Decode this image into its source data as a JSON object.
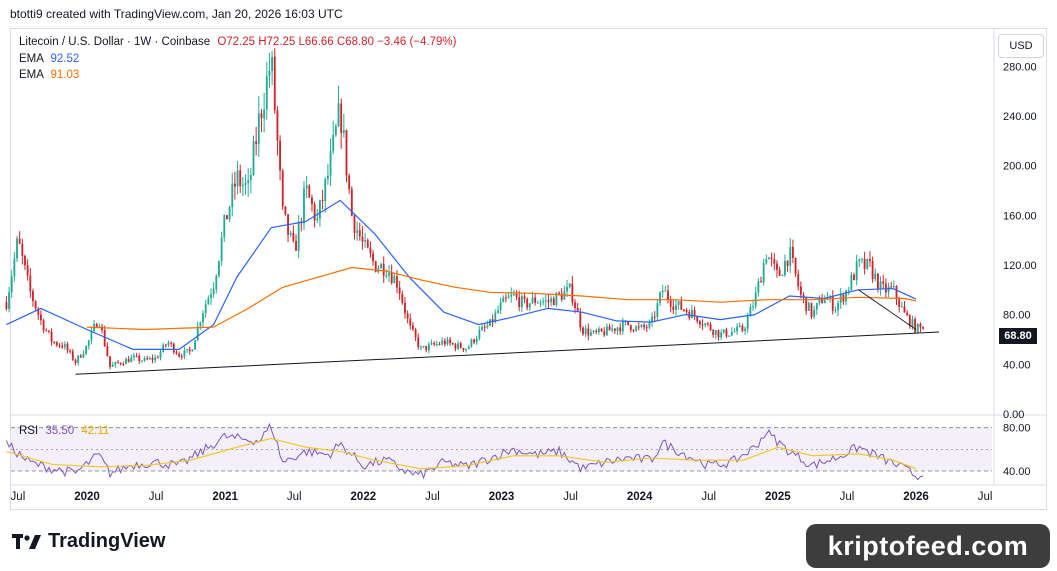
{
  "header": {
    "attribution": "btotti9 created with TradingView.com, Jan 20, 2026 16:03 UTC"
  },
  "legend": {
    "symbol": "Litecoin / U.S. Dollar · 1W · Coinbase",
    "ohlc": "O72.25 H72.25 L66.66 C68.80 −3.46 (−4.79%)",
    "ema1_label": "EMA",
    "ema1_value": "92.52",
    "ema2_label": "EMA",
    "ema2_value": "91.03",
    "rsi_label": "RSI",
    "rsi_value": "35.50",
    "rsi_ma_value": "42.11"
  },
  "currency": "USD",
  "last_price_tag": "68.80",
  "brand": "TradingView",
  "watermark": "kriptofeed.com",
  "colors": {
    "up": "#22ab94",
    "down": "#d0232a",
    "ema_fast": "#2962ff",
    "ema_slow": "#ff6d00",
    "rsi": "#7e57c2",
    "rsi_ma": "#f5c518",
    "trendline": "#131722"
  },
  "chart_data": {
    "type": "candlestick",
    "symbol": "LTCUSD",
    "interval": "1W",
    "price_axis_ticks": [
      "280.00",
      "240.00",
      "200.00",
      "160.00",
      "120.00",
      "80.00",
      "40.00",
      "0.00"
    ],
    "rsi_axis_ticks": [
      "80.00",
      "40.00"
    ],
    "x_tick_labels": [
      "Jul",
      "2020",
      "Jul",
      "2021",
      "Jul",
      "2022",
      "Jul",
      "2023",
      "Jul",
      "2024",
      "Jul",
      "2025",
      "Jul",
      "2026",
      "Jul"
    ],
    "ylim": [
      0,
      310
    ],
    "rsi_ylim": [
      28,
      88
    ],
    "price_path": [
      [
        "2019-06",
        90
      ],
      [
        "2019-07",
        140
      ],
      [
        "2019-08",
        100
      ],
      [
        "2019-09",
        75
      ],
      [
        "2019-10",
        58
      ],
      [
        "2019-11",
        55
      ],
      [
        "2019-12",
        42
      ],
      [
        "2020-01",
        55
      ],
      [
        "2020-02",
        78
      ],
      [
        "2020-03",
        38
      ],
      [
        "2020-04",
        42
      ],
      [
        "2020-05",
        45
      ],
      [
        "2020-06",
        43
      ],
      [
        "2020-07",
        45
      ],
      [
        "2020-08",
        58
      ],
      [
        "2020-09",
        48
      ],
      [
        "2020-10",
        50
      ],
      [
        "2020-11",
        82
      ],
      [
        "2020-12",
        105
      ],
      [
        "2021-01",
        155
      ],
      [
        "2021-02",
        190
      ],
      [
        "2021-03",
        180
      ],
      [
        "2021-04",
        240
      ],
      [
        "2021-05",
        285
      ],
      [
        "2021-06",
        160
      ],
      [
        "2021-07",
        130
      ],
      [
        "2021-08",
        180
      ],
      [
        "2021-09",
        155
      ],
      [
        "2021-10",
        195
      ],
      [
        "2021-11",
        245
      ],
      [
        "2021-12",
        160
      ],
      [
        "2022-01",
        135
      ],
      [
        "2022-02",
        120
      ],
      [
        "2022-03",
        118
      ],
      [
        "2022-04",
        105
      ],
      [
        "2022-05",
        70
      ],
      [
        "2022-06",
        52
      ],
      [
        "2022-07",
        55
      ],
      [
        "2022-08",
        58
      ],
      [
        "2022-09",
        55
      ],
      [
        "2022-10",
        53
      ],
      [
        "2022-11",
        65
      ],
      [
        "2022-12",
        72
      ],
      [
        "2023-01",
        88
      ],
      [
        "2023-02",
        95
      ],
      [
        "2023-03",
        88
      ],
      [
        "2023-04",
        92
      ],
      [
        "2023-05",
        90
      ],
      [
        "2023-06",
        95
      ],
      [
        "2023-07",
        100
      ],
      [
        "2023-08",
        68
      ],
      [
        "2023-09",
        64
      ],
      [
        "2023-10",
        66
      ],
      [
        "2023-11",
        70
      ],
      [
        "2023-12",
        72
      ],
      [
        "2024-01",
        68
      ],
      [
        "2024-02",
        72
      ],
      [
        "2024-03",
        100
      ],
      [
        "2024-04",
        88
      ],
      [
        "2024-05",
        84
      ],
      [
        "2024-06",
        78
      ],
      [
        "2024-07",
        70
      ],
      [
        "2024-08",
        64
      ],
      [
        "2024-09",
        66
      ],
      [
        "2024-10",
        68
      ],
      [
        "2024-11",
        92
      ],
      [
        "2024-12",
        130
      ],
      [
        "2025-01",
        110
      ],
      [
        "2025-02",
        130
      ],
      [
        "2025-03",
        95
      ],
      [
        "2025-04",
        80
      ],
      [
        "2025-05",
        95
      ],
      [
        "2025-06",
        86
      ],
      [
        "2025-07",
        100
      ],
      [
        "2025-08",
        120
      ],
      [
        "2025-09",
        118
      ],
      [
        "2025-10",
        100
      ],
      [
        "2025-11",
        100
      ],
      [
        "2025-12",
        80
      ],
      [
        "2026-01",
        68.8
      ]
    ],
    "ema_fast_path": [
      [
        "2019-06",
        72
      ],
      [
        "2019-09",
        85
      ],
      [
        "2020-01",
        68
      ],
      [
        "2020-05",
        52
      ],
      [
        "2020-09",
        52
      ],
      [
        "2020-12",
        72
      ],
      [
        "2021-02",
        110
      ],
      [
        "2021-05",
        150
      ],
      [
        "2021-08",
        155
      ],
      [
        "2021-11",
        172
      ],
      [
        "2022-02",
        145
      ],
      [
        "2022-05",
        110
      ],
      [
        "2022-08",
        82
      ],
      [
        "2022-11",
        72
      ],
      [
        "2023-02",
        78
      ],
      [
        "2023-05",
        85
      ],
      [
        "2023-08",
        82
      ],
      [
        "2023-11",
        75
      ],
      [
        "2024-02",
        74
      ],
      [
        "2024-05",
        80
      ],
      [
        "2024-08",
        76
      ],
      [
        "2024-11",
        80
      ],
      [
        "2025-02",
        95
      ],
      [
        "2025-05",
        93
      ],
      [
        "2025-08",
        100
      ],
      [
        "2025-11",
        101
      ],
      [
        "2026-01",
        92.52
      ]
    ],
    "ema_slow_path": [
      [
        "2020-01",
        70
      ],
      [
        "2020-06",
        68
      ],
      [
        "2020-12",
        70
      ],
      [
        "2021-03",
        85
      ],
      [
        "2021-06",
        102
      ],
      [
        "2021-09",
        110
      ],
      [
        "2021-12",
        118
      ],
      [
        "2022-03",
        115
      ],
      [
        "2022-06",
        108
      ],
      [
        "2022-09",
        102
      ],
      [
        "2022-12",
        98
      ],
      [
        "2023-04",
        97
      ],
      [
        "2023-08",
        95
      ],
      [
        "2023-12",
        92
      ],
      [
        "2024-04",
        92
      ],
      [
        "2024-08",
        90
      ],
      [
        "2024-12",
        92
      ],
      [
        "2025-04",
        92
      ],
      [
        "2025-08",
        94
      ],
      [
        "2025-12",
        93
      ],
      [
        "2026-01",
        91.03
      ]
    ],
    "trendline": [
      [
        "2019-12",
        32
      ],
      [
        "2026-03",
        66
      ]
    ],
    "short_trend": [
      [
        "2025-08",
        100
      ],
      [
        "2026-01",
        68
      ]
    ],
    "rsi_path": [
      [
        "2019-06",
        65
      ],
      [
        "2019-08",
        48
      ],
      [
        "2019-10",
        42
      ],
      [
        "2019-12",
        38
      ],
      [
        "2020-02",
        55
      ],
      [
        "2020-03",
        38
      ],
      [
        "2020-05",
        46
      ],
      [
        "2020-07",
        48
      ],
      [
        "2020-09",
        45
      ],
      [
        "2020-11",
        58
      ],
      [
        "2021-01",
        72
      ],
      [
        "2021-02",
        70
      ],
      [
        "2021-04",
        68
      ],
      [
        "2021-05",
        82
      ],
      [
        "2021-06",
        48
      ],
      [
        "2021-08",
        58
      ],
      [
        "2021-10",
        55
      ],
      [
        "2021-11",
        65
      ],
      [
        "2022-01",
        45
      ],
      [
        "2022-03",
        50
      ],
      [
        "2022-05",
        38
      ],
      [
        "2022-06",
        36
      ],
      [
        "2022-08",
        48
      ],
      [
        "2022-10",
        44
      ],
      [
        "2022-12",
        52
      ],
      [
        "2023-02",
        60
      ],
      [
        "2023-04",
        55
      ],
      [
        "2023-06",
        58
      ],
      [
        "2023-08",
        42
      ],
      [
        "2023-10",
        48
      ],
      [
        "2023-12",
        52
      ],
      [
        "2024-02",
        50
      ],
      [
        "2024-03",
        66
      ],
      [
        "2024-05",
        55
      ],
      [
        "2024-07",
        45
      ],
      [
        "2024-09",
        48
      ],
      [
        "2024-11",
        62
      ],
      [
        "2024-12",
        76
      ],
      [
        "2025-02",
        58
      ],
      [
        "2025-04",
        45
      ],
      [
        "2025-06",
        52
      ],
      [
        "2025-08",
        62
      ],
      [
        "2025-10",
        52
      ],
      [
        "2025-12",
        42
      ],
      [
        "2026-01",
        35.5
      ]
    ],
    "rsi_ma_path": [
      [
        "2019-06",
        58
      ],
      [
        "2019-10",
        46
      ],
      [
        "2020-02",
        44
      ],
      [
        "2020-06",
        45
      ],
      [
        "2020-10",
        50
      ],
      [
        "2021-02",
        62
      ],
      [
        "2021-05",
        70
      ],
      [
        "2021-08",
        62
      ],
      [
        "2021-11",
        58
      ],
      [
        "2022-02",
        50
      ],
      [
        "2022-06",
        42
      ],
      [
        "2022-10",
        45
      ],
      [
        "2023-02",
        54
      ],
      [
        "2023-06",
        54
      ],
      [
        "2023-10",
        48
      ],
      [
        "2024-02",
        52
      ],
      [
        "2024-06",
        50
      ],
      [
        "2024-10",
        50
      ],
      [
        "2025-01",
        62
      ],
      [
        "2025-04",
        54
      ],
      [
        "2025-08",
        56
      ],
      [
        "2025-11",
        50
      ],
      [
        "2026-01",
        42.11
      ]
    ]
  }
}
